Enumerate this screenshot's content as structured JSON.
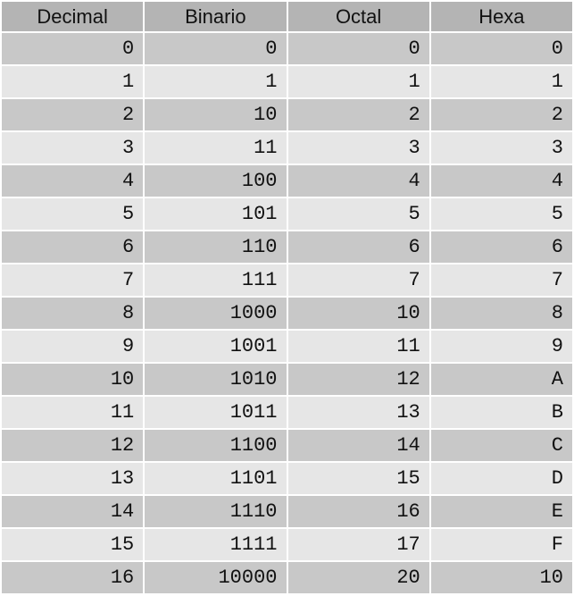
{
  "table": {
    "headers": [
      "Decimal",
      "Binario",
      "Octal",
      "Hexa"
    ],
    "rows": [
      [
        "0",
        "0",
        "0",
        "0"
      ],
      [
        "1",
        "1",
        "1",
        "1"
      ],
      [
        "2",
        "10",
        "2",
        "2"
      ],
      [
        "3",
        "11",
        "3",
        "3"
      ],
      [
        "4",
        "100",
        "4",
        "4"
      ],
      [
        "5",
        "101",
        "5",
        "5"
      ],
      [
        "6",
        "110",
        "6",
        "6"
      ],
      [
        "7",
        "111",
        "7",
        "7"
      ],
      [
        "8",
        "1000",
        "10",
        "8"
      ],
      [
        "9",
        "1001",
        "11",
        "9"
      ],
      [
        "10",
        "1010",
        "12",
        "A"
      ],
      [
        "11",
        "1011",
        "13",
        "B"
      ],
      [
        "12",
        "1100",
        "14",
        "C"
      ],
      [
        "13",
        "1101",
        "15",
        "D"
      ],
      [
        "14",
        "1110",
        "16",
        "E"
      ],
      [
        "15",
        "1111",
        "17",
        "F"
      ],
      [
        "16",
        "10000",
        "20",
        "10"
      ]
    ]
  },
  "colors": {
    "header_bg": "#b4b4b4",
    "row_dark": "#c8c8c8",
    "row_light": "#e6e6e6",
    "text": "#111111"
  }
}
